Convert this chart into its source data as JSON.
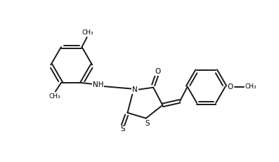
{
  "bg_color": "#ffffff",
  "line_color": "#1a1a1a",
  "line_width": 1.4,
  "figsize": [
    3.97,
    2.31
  ],
  "dpi": 100,
  "xlim": [
    -1,
    10
  ],
  "ylim": [
    -0.5,
    6.5
  ]
}
